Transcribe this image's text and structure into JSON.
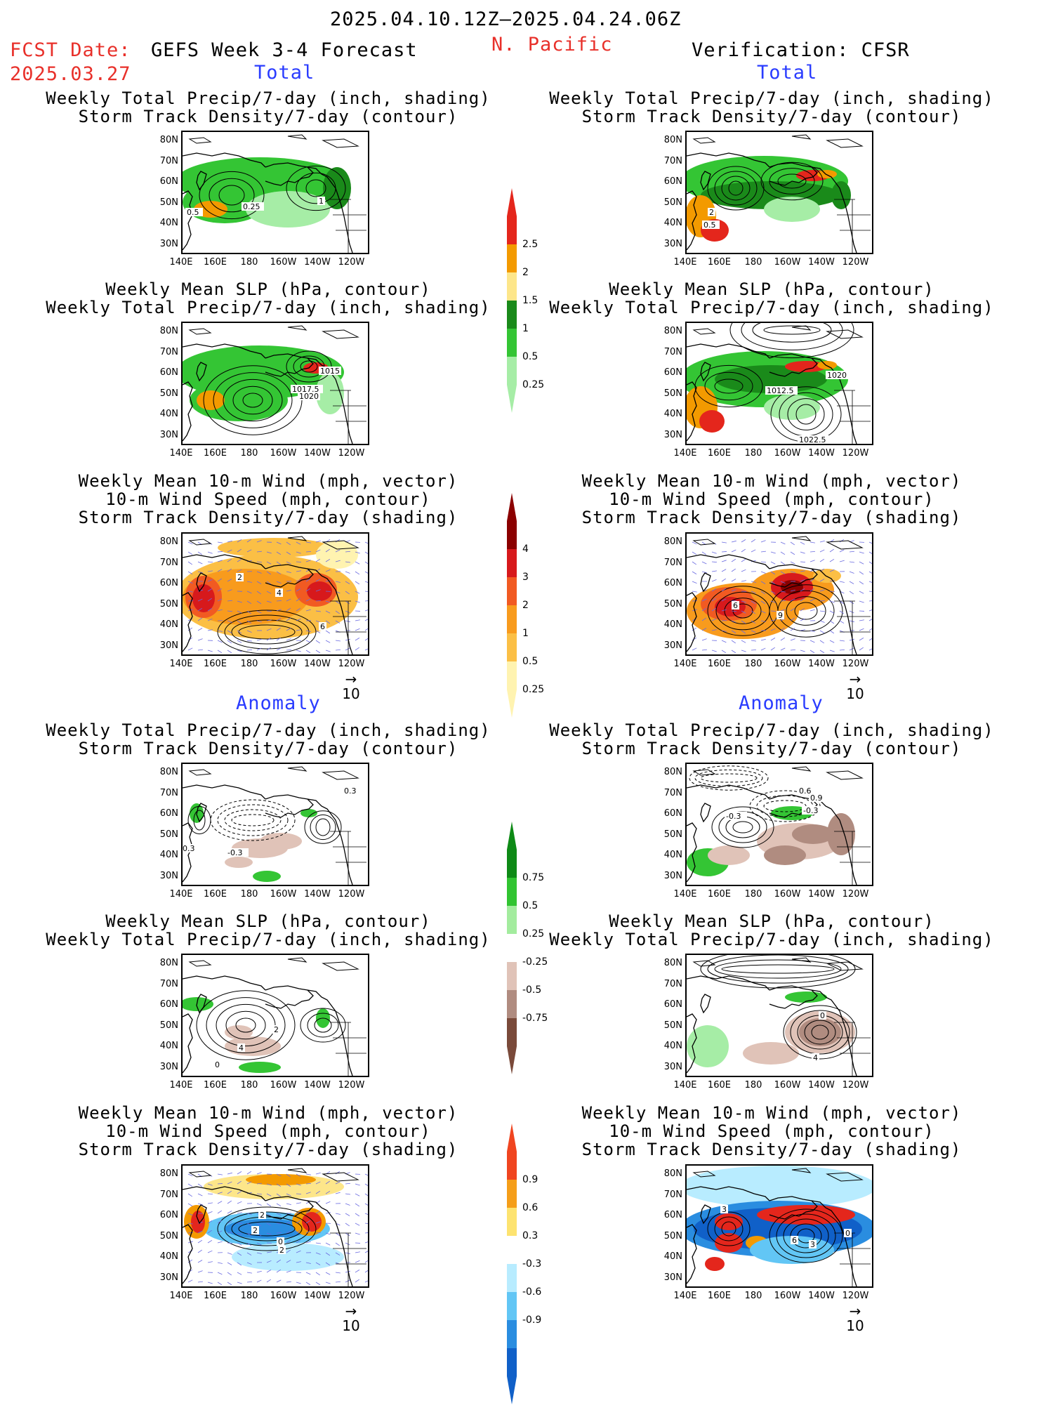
{
  "header": {
    "date_range": "2025.04.10.12Z—2025.04.24.06Z",
    "region": "N. Pacific",
    "fcst_label": "FCST Date:",
    "fcst_date": "2025.03.27",
    "forecast_title": "GEFS Week 3-4 Forecast",
    "verification_title": "Verification: CFSR"
  },
  "sections": {
    "total": "Total",
    "anomaly": "Anomaly"
  },
  "titles": {
    "precip_track": [
      "Weekly Total Precip/7-day (inch, shading)",
      "Storm Track Density/7-day (contour)"
    ],
    "slp_precip": [
      "Weekly Mean SLP (hPa, contour)",
      "Weekly Total Precip/7-day (inch, shading)"
    ],
    "wind": [
      "Weekly Mean 10-m Wind (mph, vector)",
      "10-m Wind Speed (mph, contour)",
      "Storm Track Density/7-day (shading)"
    ]
  },
  "axes": {
    "lat_ticks": [
      "80N",
      "70N",
      "60N",
      "50N",
      "40N",
      "30N"
    ],
    "lon_ticks": [
      "140E",
      "160E",
      "180",
      "160W",
      "140W",
      "120W"
    ],
    "vector_ref": "10"
  },
  "colorbars": {
    "precip_total": {
      "labels": [
        "2.5",
        "2",
        "1.5",
        "1",
        "0.5",
        "0.25"
      ],
      "colors": [
        "#e4261c",
        "#f39a00",
        "#fde68a",
        "#1a8a1a",
        "#34c534",
        "#a6eda6"
      ]
    },
    "track_total": {
      "labels": [
        "4",
        "3",
        "2",
        "1",
        "0.5",
        "0.25"
      ],
      "colors": [
        "#8b0000",
        "#d7191c",
        "#f15a22",
        "#f89b1d",
        "#fbbf45",
        "#fff3b0"
      ]
    },
    "precip_anom": {
      "labels": [
        "0.75",
        "0.5",
        "0.25",
        "-0.25",
        "-0.5",
        "-0.75"
      ],
      "colors": [
        "#0e8a16",
        "#31c431",
        "#a3ec9e",
        "#ffffff",
        "#e0c3b8",
        "#b08c80",
        "#7a4a3a"
      ]
    },
    "track_anom": {
      "labels": [
        "0.9",
        "0.6",
        "0.3",
        "-0.3",
        "-0.6",
        "-0.9"
      ],
      "colors": [
        "#f04520",
        "#f59e19",
        "#fde370",
        "#ffffff",
        "#b8ecff",
        "#62c6f5",
        "#2a8de0",
        "#1060c8"
      ]
    }
  },
  "panel_labels": {
    "f1": [
      "0.5",
      "0.25",
      "1"
    ],
    "v1": [
      "2",
      "0.5"
    ],
    "f2": [
      "1015",
      "1017.5",
      "1020"
    ],
    "v2": [
      "1020",
      "1012.5",
      "1022.5"
    ],
    "f3": [
      "4",
      "2",
      "6"
    ],
    "v3": [
      "6",
      "9"
    ],
    "f4": [
      "0.3",
      "0.3",
      "-0.3"
    ],
    "v4": [
      "-0.3",
      "0.6",
      "0.9",
      "-0.3"
    ],
    "f5": [
      "2",
      "4",
      "0"
    ],
    "v5": [
      "0",
      "4"
    ],
    "f6": [
      "2",
      "2",
      "0",
      "2"
    ],
    "v6": [
      "3",
      "6",
      "3",
      "0"
    ]
  }
}
